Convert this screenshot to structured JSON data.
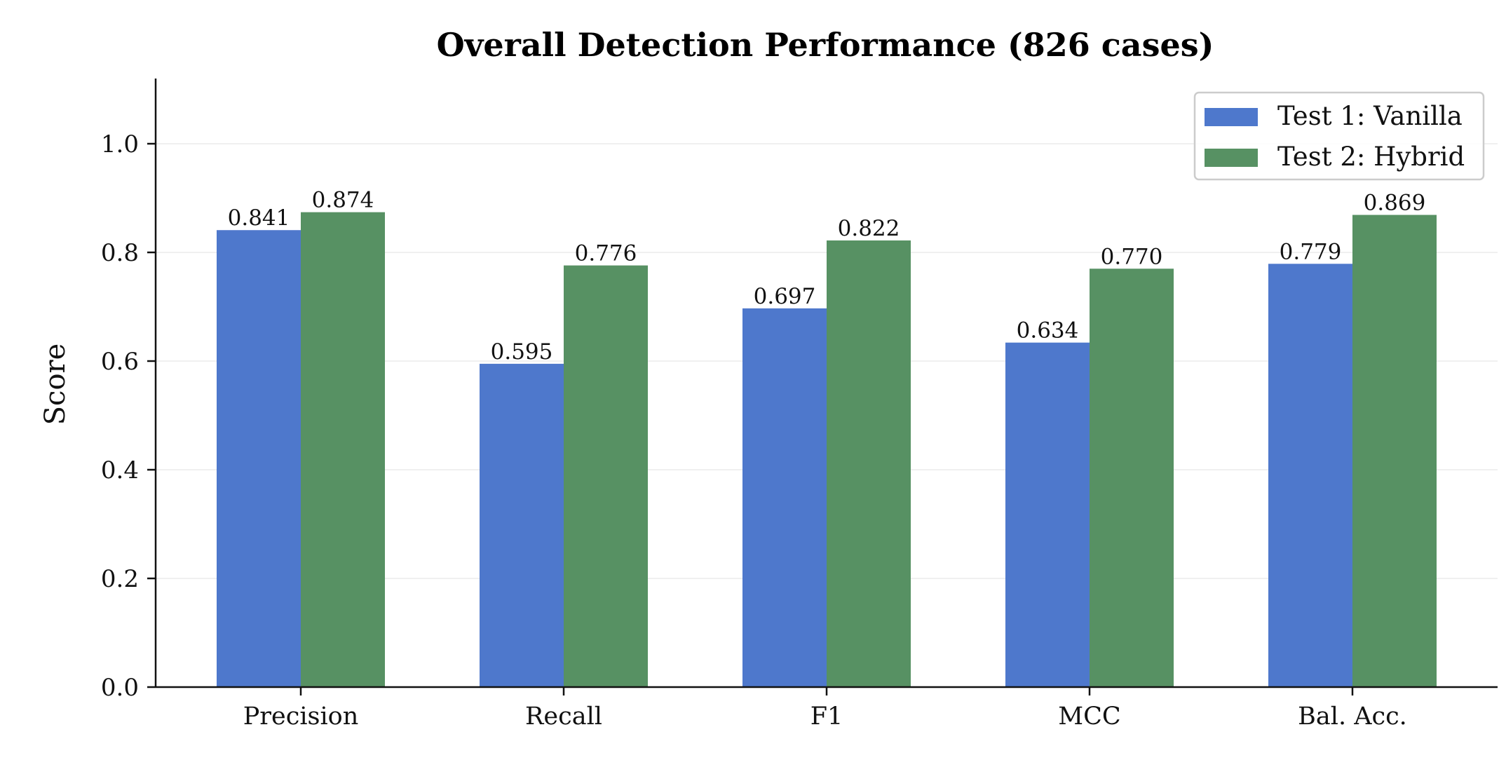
{
  "chart_data": {
    "type": "bar",
    "title": "Overall Detection Performance (826 cases)",
    "xlabel": "",
    "ylabel": "Score",
    "categories": [
      "Precision",
      "Recall",
      "F1",
      "MCC",
      "Bal. Acc."
    ],
    "series": [
      {
        "name": "Test 1: Vanilla",
        "color": "#4e78cc",
        "values": [
          0.841,
          0.595,
          0.697,
          0.634,
          0.779
        ],
        "labels": [
          "0.841",
          "0.595",
          "0.697",
          "0.634",
          "0.779"
        ]
      },
      {
        "name": "Test 2: Hybrid",
        "color": "#579163",
        "values": [
          0.874,
          0.776,
          0.822,
          0.77,
          0.869
        ],
        "labels": [
          "0.874",
          "0.776",
          "0.822",
          "0.770",
          "0.869"
        ]
      }
    ],
    "ylim": [
      0,
      1.12
    ],
    "yticks": [
      0.0,
      0.2,
      0.4,
      0.6,
      0.8,
      1.0
    ],
    "ytick_labels": [
      "0.0",
      "0.2",
      "0.4",
      "0.6",
      "0.8",
      "1.0"
    ],
    "grid": "horizontal, light",
    "legend_position": "top-right"
  }
}
